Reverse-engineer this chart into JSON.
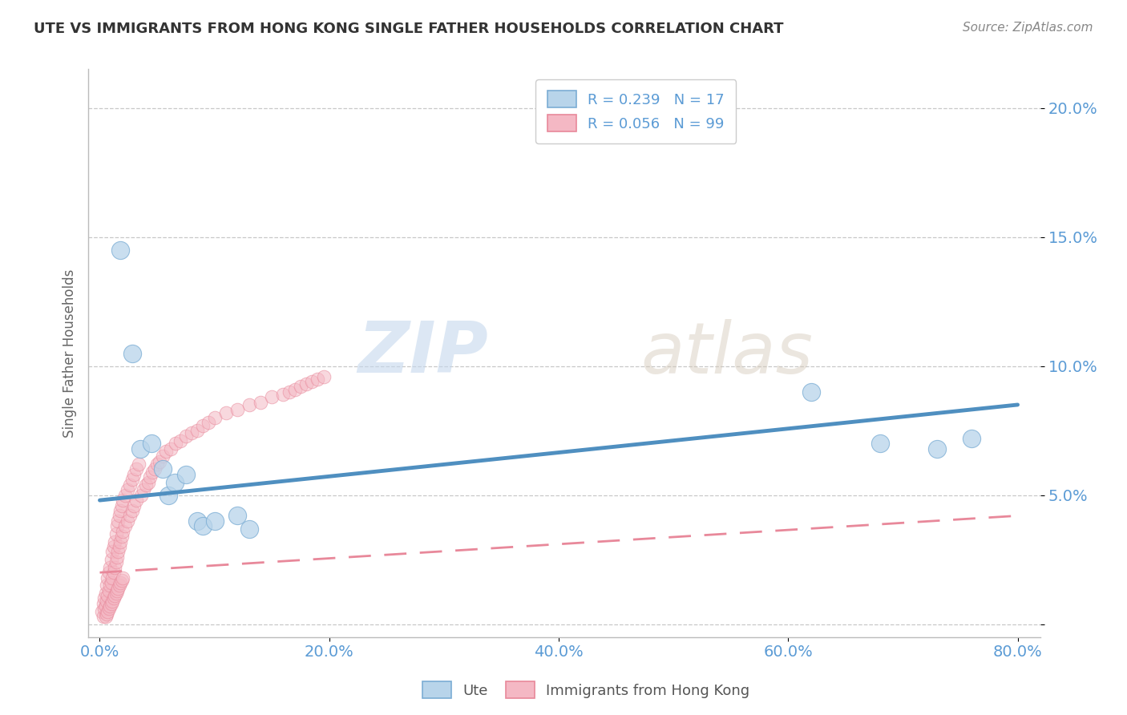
{
  "title": "UTE VS IMMIGRANTS FROM HONG KONG SINGLE FATHER HOUSEHOLDS CORRELATION CHART",
  "source_text": "Source: ZipAtlas.com",
  "ylabel": "Single Father Households",
  "watermark_zip": "ZIP",
  "watermark_atlas": "atlas",
  "legend_entries": [
    {
      "label": "R = 0.239   N = 17",
      "color": "#a8c4e0"
    },
    {
      "label": "R = 0.056   N = 99",
      "color": "#f4a0b0"
    }
  ],
  "bottom_legend": [
    "Ute",
    "Immigrants from Hong Kong"
  ],
  "blue_scatter_x": [
    0.018,
    0.028,
    0.035,
    0.045,
    0.055,
    0.06,
    0.065,
    0.075,
    0.085,
    0.09,
    0.1,
    0.12,
    0.13,
    0.62,
    0.68,
    0.73,
    0.76
  ],
  "blue_scatter_y": [
    0.145,
    0.105,
    0.068,
    0.07,
    0.06,
    0.05,
    0.055,
    0.058,
    0.04,
    0.038,
    0.04,
    0.042,
    0.037,
    0.09,
    0.07,
    0.068,
    0.072
  ],
  "pink_scatter_x": [
    0.002,
    0.003,
    0.003,
    0.004,
    0.004,
    0.005,
    0.005,
    0.005,
    0.006,
    0.006,
    0.006,
    0.007,
    0.007,
    0.007,
    0.008,
    0.008,
    0.008,
    0.009,
    0.009,
    0.009,
    0.01,
    0.01,
    0.01,
    0.011,
    0.011,
    0.011,
    0.012,
    0.012,
    0.012,
    0.013,
    0.013,
    0.013,
    0.014,
    0.014,
    0.014,
    0.015,
    0.015,
    0.015,
    0.016,
    0.016,
    0.016,
    0.017,
    0.017,
    0.017,
    0.018,
    0.018,
    0.018,
    0.019,
    0.019,
    0.019,
    0.02,
    0.02,
    0.02,
    0.022,
    0.022,
    0.024,
    0.024,
    0.026,
    0.026,
    0.028,
    0.028,
    0.03,
    0.03,
    0.032,
    0.032,
    0.034,
    0.036,
    0.038,
    0.04,
    0.042,
    0.044,
    0.046,
    0.048,
    0.05,
    0.052,
    0.055,
    0.058,
    0.062,
    0.066,
    0.07,
    0.075,
    0.08,
    0.085,
    0.09,
    0.095,
    0.1,
    0.11,
    0.12,
    0.13,
    0.14,
    0.15,
    0.16,
    0.165,
    0.17,
    0.175,
    0.18,
    0.185,
    0.19,
    0.195
  ],
  "pink_scatter_y": [
    0.005,
    0.008,
    0.003,
    0.01,
    0.006,
    0.012,
    0.007,
    0.003,
    0.015,
    0.009,
    0.004,
    0.018,
    0.011,
    0.005,
    0.02,
    0.013,
    0.006,
    0.022,
    0.015,
    0.007,
    0.025,
    0.016,
    0.008,
    0.028,
    0.018,
    0.009,
    0.03,
    0.02,
    0.01,
    0.032,
    0.022,
    0.011,
    0.035,
    0.024,
    0.012,
    0.038,
    0.026,
    0.013,
    0.04,
    0.028,
    0.014,
    0.042,
    0.03,
    0.015,
    0.044,
    0.032,
    0.016,
    0.046,
    0.034,
    0.017,
    0.048,
    0.036,
    0.018,
    0.05,
    0.038,
    0.052,
    0.04,
    0.054,
    0.042,
    0.056,
    0.044,
    0.058,
    0.046,
    0.06,
    0.048,
    0.062,
    0.05,
    0.052,
    0.054,
    0.055,
    0.057,
    0.059,
    0.06,
    0.062,
    0.063,
    0.065,
    0.067,
    0.068,
    0.07,
    0.071,
    0.073,
    0.074,
    0.075,
    0.077,
    0.078,
    0.08,
    0.082,
    0.083,
    0.085,
    0.086,
    0.088,
    0.089,
    0.09,
    0.091,
    0.092,
    0.093,
    0.094,
    0.095,
    0.096
  ],
  "blue_line_x": [
    0.0,
    0.8
  ],
  "blue_line_y": [
    0.048,
    0.085
  ],
  "pink_line_x": [
    0.0,
    0.8
  ],
  "pink_line_y": [
    0.02,
    0.042
  ],
  "xlim": [
    -0.01,
    0.82
  ],
  "ylim": [
    -0.005,
    0.215
  ],
  "xticks": [
    0.0,
    0.2,
    0.4,
    0.6,
    0.8
  ],
  "yticks": [
    0.0,
    0.05,
    0.1,
    0.15,
    0.2
  ],
  "xticklabels": [
    "0.0%",
    "20.0%",
    "40.0%",
    "60.0%",
    "80.0%"
  ],
  "yticklabels": [
    "",
    "5.0%",
    "10.0%",
    "15.0%",
    "20.0%"
  ],
  "blue_color": "#4f8fc0",
  "pink_color": "#e8889a",
  "blue_scatter_fill": "#b8d4ea",
  "blue_scatter_edge": "#7badd4",
  "pink_scatter_fill": "#f4b8c4",
  "pink_scatter_edge": "#e8889a",
  "background_color": "#ffffff",
  "grid_color": "#bbbbbb",
  "title_color": "#333333",
  "tick_color": "#5b9bd5",
  "source_color": "#888888"
}
